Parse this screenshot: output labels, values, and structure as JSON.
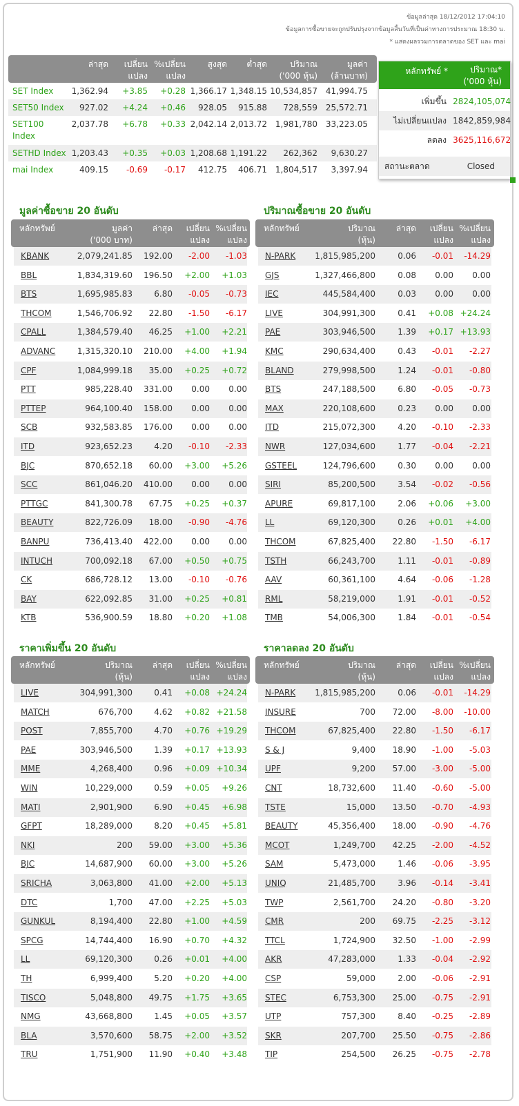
{
  "meta": {
    "updated": "ข้อมูลล่าสุด 18/12/2012 17:04:10",
    "note1": "ข้อมูลการซื้อขายจะถูกปรับปรุงจากข้อมูลสิ้นวันที่เป็นค่าทางการประมาณ 18:30 น.",
    "note2": "* แสดงผลรวมการตลาดของ SET และ mai"
  },
  "index_table": {
    "headers": [
      "ล่าสุด",
      "เปลี่ยน\nแปลง",
      "%เปลี่ยน\nแปลง",
      "สูงสุด",
      "ต่ำสุด",
      "ปริมาณ\n('000 หุ้น)",
      "มูลค่า\n(ล้านบาท)"
    ],
    "rows": [
      [
        "SET Index",
        "1,362.94",
        "+3.85",
        "+0.28",
        "1,366.17",
        "1,348.15",
        "10,534,857",
        "41,994.75"
      ],
      [
        "SET50 Index",
        "927.02",
        "+4.24",
        "+0.46",
        "928.05",
        "915.88",
        "728,559",
        "25,572.71"
      ],
      [
        "SET100\nIndex",
        "2,037.78",
        "+6.78",
        "+0.33",
        "2,042.14",
        "2,013.72",
        "1,981,780",
        "33,223.05"
      ],
      [
        "SETHD Index",
        "1,203.43",
        "+0.35",
        "+0.03",
        "1,208.68",
        "1,191.22",
        "262,362",
        "9,630.27"
      ],
      [
        "mai Index",
        "409.15",
        "-0.69",
        "-0.17",
        "412.75",
        "406.71",
        "1,804,517",
        "3,397.94"
      ]
    ]
  },
  "summary": {
    "headers": [
      "หลักทรัพย์ *",
      "ปริมาณ*\n('000 หุ้น)"
    ],
    "rows": [
      [
        "เพิ่มขึ้น",
        "282",
        "4,105,074"
      ],
      [
        "ไม่เปลี่ยนแปลง",
        "184",
        "2,859,984"
      ],
      [
        "ลดลง",
        "362",
        "5,116,672"
      ]
    ],
    "status_label": "สถานะตลาด",
    "status_value": "Closed"
  },
  "top_value": {
    "title": "มูลค่าซื้อขาย 20 อันดับ",
    "headers": [
      "หลักทรัพย์",
      "มูลค่า\n('000 บาท)",
      "ล่าสุด",
      "เปลี่ยน\nแปลง",
      "%เปลี่ยน\nแปลง"
    ],
    "rows": [
      [
        "KBANK",
        "2,079,241.85",
        "192.00",
        "-2.00",
        "-1.03"
      ],
      [
        "BBL",
        "1,834,319.60",
        "196.50",
        "+2.00",
        "+1.03"
      ],
      [
        "BTS",
        "1,695,985.83",
        "6.80",
        "-0.05",
        "-0.73"
      ],
      [
        "THCOM",
        "1,546,706.92",
        "22.80",
        "-1.50",
        "-6.17"
      ],
      [
        "CPALL",
        "1,384,579.40",
        "46.25",
        "+1.00",
        "+2.21"
      ],
      [
        "ADVANC",
        "1,315,320.10",
        "210.00",
        "+4.00",
        "+1.94"
      ],
      [
        "CPF",
        "1,084,999.18",
        "35.00",
        "+0.25",
        "+0.72"
      ],
      [
        "PTT",
        "985,228.40",
        "331.00",
        "0.00",
        "0.00"
      ],
      [
        "PTTEP",
        "964,100.40",
        "158.00",
        "0.00",
        "0.00"
      ],
      [
        "SCB",
        "932,583.85",
        "176.00",
        "0.00",
        "0.00"
      ],
      [
        "ITD",
        "923,652.23",
        "4.20",
        "-0.10",
        "-2.33"
      ],
      [
        "BJC",
        "870,652.18",
        "60.00",
        "+3.00",
        "+5.26"
      ],
      [
        "SCC",
        "861,046.20",
        "410.00",
        "0.00",
        "0.00"
      ],
      [
        "PTTGC",
        "841,300.78",
        "67.75",
        "+0.25",
        "+0.37"
      ],
      [
        "BEAUTY",
        "822,726.09",
        "18.00",
        "-0.90",
        "-4.76"
      ],
      [
        "BANPU",
        "736,413.40",
        "422.00",
        "0.00",
        "0.00"
      ],
      [
        "INTUCH",
        "700,092.18",
        "67.00",
        "+0.50",
        "+0.75"
      ],
      [
        "CK",
        "686,728.12",
        "13.00",
        "-0.10",
        "-0.76"
      ],
      [
        "BAY",
        "622,092.85",
        "31.00",
        "+0.25",
        "+0.81"
      ],
      [
        "KTB",
        "536,900.59",
        "18.80",
        "+0.20",
        "+1.08"
      ]
    ]
  },
  "top_volume": {
    "title": "ปริมาณซื้อขาย 20 อันดับ",
    "headers": [
      "หลักทรัพย์",
      "ปริมาณ\n(หุ้น)",
      "ล่าสุด",
      "เปลี่ยน\nแปลง",
      "%เปลี่ยน\nแปลง"
    ],
    "rows": [
      [
        "N-PARK",
        "1,815,985,200",
        "0.06",
        "-0.01",
        "-14.29"
      ],
      [
        "GJS",
        "1,327,466,800",
        "0.08",
        "0.00",
        "0.00"
      ],
      [
        "IEC",
        "445,584,400",
        "0.03",
        "0.00",
        "0.00"
      ],
      [
        "LIVE",
        "304,991,300",
        "0.41",
        "+0.08",
        "+24.24"
      ],
      [
        "PAE",
        "303,946,500",
        "1.39",
        "+0.17",
        "+13.93"
      ],
      [
        "KMC",
        "290,634,400",
        "0.43",
        "-0.01",
        "-2.27"
      ],
      [
        "BLAND",
        "279,998,500",
        "1.24",
        "-0.01",
        "-0.80"
      ],
      [
        "BTS",
        "247,188,500",
        "6.80",
        "-0.05",
        "-0.73"
      ],
      [
        "MAX",
        "220,108,600",
        "0.23",
        "0.00",
        "0.00"
      ],
      [
        "ITD",
        "215,072,300",
        "4.20",
        "-0.10",
        "-2.33"
      ],
      [
        "NWR",
        "127,034,600",
        "1.77",
        "-0.04",
        "-2.21"
      ],
      [
        "GSTEEL",
        "124,796,600",
        "0.30",
        "0.00",
        "0.00"
      ],
      [
        "SIRI",
        "85,200,500",
        "3.54",
        "-0.02",
        "-0.56"
      ],
      [
        "APURE",
        "69,817,100",
        "2.06",
        "+0.06",
        "+3.00"
      ],
      [
        "LL",
        "69,120,300",
        "0.26",
        "+0.01",
        "+4.00"
      ],
      [
        "THCOM",
        "67,825,400",
        "22.80",
        "-1.50",
        "-6.17"
      ],
      [
        "TSTH",
        "66,243,700",
        "1.11",
        "-0.01",
        "-0.89"
      ],
      [
        "AAV",
        "60,361,100",
        "4.64",
        "-0.06",
        "-1.28"
      ],
      [
        "RML",
        "58,219,000",
        "1.91",
        "-0.01",
        "-0.52"
      ],
      [
        "TMB",
        "54,006,300",
        "1.84",
        "-0.01",
        "-0.54"
      ]
    ]
  },
  "top_gainers": {
    "title": "ราคาเพิ่มขึ้น 20 อันดับ",
    "headers": [
      "หลักทรัพย์",
      "ปริมาณ\n(หุ้น)",
      "ล่าสุด",
      "เปลี่ยน\nแปลง",
      "%เปลี่ยน\nแปลง"
    ],
    "rows": [
      [
        "LIVE",
        "304,991,300",
        "0.41",
        "+0.08",
        "+24.24"
      ],
      [
        "MATCH",
        "676,700",
        "4.62",
        "+0.82",
        "+21.58"
      ],
      [
        "POST",
        "7,855,700",
        "4.70",
        "+0.76",
        "+19.29"
      ],
      [
        "PAE",
        "303,946,500",
        "1.39",
        "+0.17",
        "+13.93"
      ],
      [
        "MME",
        "4,268,400",
        "0.96",
        "+0.09",
        "+10.34"
      ],
      [
        "WIN",
        "10,229,000",
        "0.59",
        "+0.05",
        "+9.26"
      ],
      [
        "MATI",
        "2,901,900",
        "6.90",
        "+0.45",
        "+6.98"
      ],
      [
        "GFPT",
        "18,289,000",
        "8.20",
        "+0.45",
        "+5.81"
      ],
      [
        "NKI",
        "200",
        "59.00",
        "+3.00",
        "+5.36"
      ],
      [
        "BJC",
        "14,687,900",
        "60.00",
        "+3.00",
        "+5.26"
      ],
      [
        "SRICHA",
        "3,063,800",
        "41.00",
        "+2.00",
        "+5.13"
      ],
      [
        "DTC",
        "1,700",
        "47.00",
        "+2.25",
        "+5.03"
      ],
      [
        "GUNKUL",
        "8,194,400",
        "22.80",
        "+1.00",
        "+4.59"
      ],
      [
        "SPCG",
        "14,744,400",
        "16.90",
        "+0.70",
        "+4.32"
      ],
      [
        "LL",
        "69,120,300",
        "0.26",
        "+0.01",
        "+4.00"
      ],
      [
        "TH",
        "6,999,400",
        "5.20",
        "+0.20",
        "+4.00"
      ],
      [
        "TISCO",
        "5,048,800",
        "49.75",
        "+1.75",
        "+3.65"
      ],
      [
        "NMG",
        "43,668,800",
        "1.45",
        "+0.05",
        "+3.57"
      ],
      [
        "BLA",
        "3,570,600",
        "58.75",
        "+2.00",
        "+3.52"
      ],
      [
        "TRU",
        "1,751,900",
        "11.90",
        "+0.40",
        "+3.48"
      ]
    ]
  },
  "top_losers": {
    "title": "ราคาลดลง 20 อันดับ",
    "headers": [
      "หลักทรัพย์",
      "ปริมาณ\n(หุ้น)",
      "ล่าสุด",
      "เปลี่ยน\nแปลง",
      "%เปลี่ยน\nแปลง"
    ],
    "rows": [
      [
        "N-PARK",
        "1,815,985,200",
        "0.06",
        "-0.01",
        "-14.29"
      ],
      [
        "INSURE",
        "700",
        "72.00",
        "-8.00",
        "-10.00"
      ],
      [
        "THCOM",
        "67,825,400",
        "22.80",
        "-1.50",
        "-6.17"
      ],
      [
        "S & J",
        "9,400",
        "18.90",
        "-1.00",
        "-5.03"
      ],
      [
        "UPF",
        "9,200",
        "57.00",
        "-3.00",
        "-5.00"
      ],
      [
        "CNT",
        "18,732,600",
        "11.40",
        "-0.60",
        "-5.00"
      ],
      [
        "TSTE",
        "15,000",
        "13.50",
        "-0.70",
        "-4.93"
      ],
      [
        "BEAUTY",
        "45,356,400",
        "18.00",
        "-0.90",
        "-4.76"
      ],
      [
        "MCOT",
        "1,249,700",
        "42.25",
        "-2.00",
        "-4.52"
      ],
      [
        "SAM",
        "5,473,000",
        "1.46",
        "-0.06",
        "-3.95"
      ],
      [
        "UNIQ",
        "21,485,700",
        "3.96",
        "-0.14",
        "-3.41"
      ],
      [
        "TWP",
        "2,561,700",
        "24.20",
        "-0.80",
        "-3.20"
      ],
      [
        "CMR",
        "200",
        "69.75",
        "-2.25",
        "-3.12"
      ],
      [
        "TTCL",
        "1,724,900",
        "32.50",
        "-1.00",
        "-2.99"
      ],
      [
        "AKR",
        "47,283,000",
        "1.33",
        "-0.04",
        "-2.92"
      ],
      [
        "CSP",
        "59,000",
        "2.00",
        "-0.06",
        "-2.91"
      ],
      [
        "STEC",
        "6,753,300",
        "25.00",
        "-0.75",
        "-2.91"
      ],
      [
        "UTP",
        "757,300",
        "8.40",
        "-0.25",
        "-2.89"
      ],
      [
        "SKR",
        "207,700",
        "25.50",
        "-0.75",
        "-2.86"
      ],
      [
        "TIP",
        "254,500",
        "26.25",
        "-0.75",
        "-2.78"
      ]
    ]
  }
}
